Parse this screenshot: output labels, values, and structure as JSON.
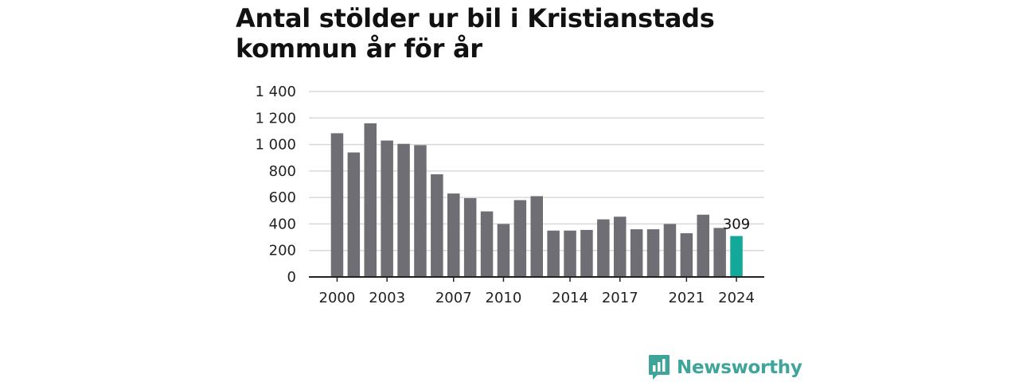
{
  "chart_data": {
    "type": "bar",
    "title": "Antal stölder ur bil i Kristianstads kommun år för år",
    "x": [
      2000,
      2001,
      2002,
      2003,
      2004,
      2005,
      2006,
      2007,
      2008,
      2009,
      2010,
      2011,
      2012,
      2013,
      2014,
      2015,
      2016,
      2017,
      2018,
      2019,
      2020,
      2021,
      2022,
      2023,
      2024
    ],
    "values": [
      1085,
      940,
      1160,
      1030,
      1005,
      995,
      775,
      630,
      595,
      495,
      400,
      580,
      610,
      350,
      350,
      355,
      435,
      455,
      360,
      360,
      400,
      330,
      470,
      370,
      309
    ],
    "x_tick_labels": [
      "2000",
      "2003",
      "2007",
      "2010",
      "2014",
      "2017",
      "2021",
      "2024"
    ],
    "y_tick_labels": [
      "0",
      "200",
      "400",
      "600",
      "800",
      "1 000",
      "1 200",
      "1 400"
    ],
    "ylim": [
      0,
      1400
    ],
    "y_ticks": [
      0,
      200,
      400,
      600,
      800,
      1000,
      1200,
      1400
    ],
    "grid": true,
    "highlight": {
      "x": 2024,
      "label": "309"
    },
    "colors": {
      "bar": "#6f6e75",
      "highlight": "#12a89a",
      "grid": "#d9d9d9",
      "axis": "#222222"
    }
  },
  "brand": {
    "name": "Newsworthy",
    "icon": "bar-chart-speech-bubble-icon",
    "color": "#3fa59a"
  }
}
